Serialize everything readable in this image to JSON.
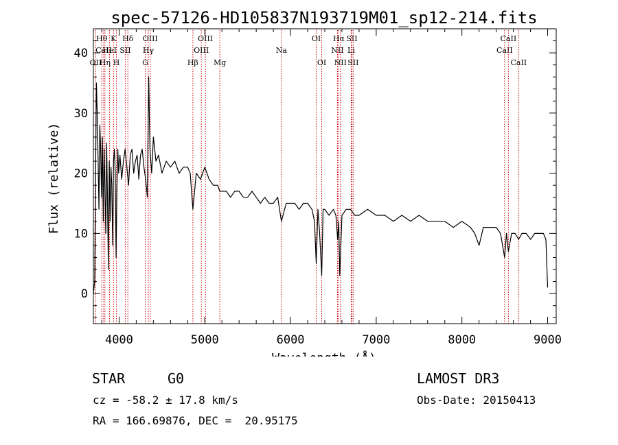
{
  "chart_data": {
    "type": "line",
    "title": "spec-57126-HD105837N193719M01_sp12-214.fits",
    "xlabel": "Wavelength (Å)",
    "ylabel": "Flux (relative)",
    "xlim": [
      3700,
      9100
    ],
    "ylim": [
      -5,
      44
    ],
    "xticks": [
      4000,
      5000,
      6000,
      7000,
      8000,
      9000
    ],
    "yticks": [
      0,
      10,
      20,
      30,
      40
    ],
    "spectral_lines": [
      {
        "name": "OII",
        "wavelength": 3727,
        "row": 3
      },
      {
        "name": "Hθ",
        "wavelength": 3798,
        "row": 1
      },
      {
        "name": "CaII",
        "wavelength": 3820,
        "row": 2
      },
      {
        "name": "HeI",
        "wavelength": 3889,
        "row": 2
      },
      {
        "name": "Hη",
        "wavelength": 3835,
        "row": 3
      },
      {
        "name": "K",
        "wavelength": 3934,
        "row": 1
      },
      {
        "name": "H",
        "wavelength": 3969,
        "row": 3
      },
      {
        "name": "SII",
        "wavelength": 4072,
        "row": 2
      },
      {
        "name": "Hδ",
        "wavelength": 4102,
        "row": 1
      },
      {
        "name": "G",
        "wavelength": 4305,
        "row": 3
      },
      {
        "name": "Hγ",
        "wavelength": 4341,
        "row": 2
      },
      {
        "name": "OIII",
        "wavelength": 4363,
        "row": 1
      },
      {
        "name": "Hβ",
        "wavelength": 4861,
        "row": 3
      },
      {
        "name": "OIII",
        "wavelength": 4959,
        "row": 2
      },
      {
        "name": "OIII",
        "wavelength": 5007,
        "row": 1
      },
      {
        "name": "Mg",
        "wavelength": 5175,
        "row": 3
      },
      {
        "name": "Na",
        "wavelength": 5894,
        "row": 2
      },
      {
        "name": "OI",
        "wavelength": 6300,
        "row": 1
      },
      {
        "name": "OI",
        "wavelength": 6364,
        "row": 3
      },
      {
        "name": "NII",
        "wavelength": 6548,
        "row": 2
      },
      {
        "name": "Hα",
        "wavelength": 6563,
        "row": 1
      },
      {
        "name": "NII",
        "wavelength": 6583,
        "row": 3
      },
      {
        "name": "Li",
        "wavelength": 6708,
        "row": 2
      },
      {
        "name": "SII",
        "wavelength": 6716,
        "row": 1
      },
      {
        "name": "SII",
        "wavelength": 6731,
        "row": 3
      },
      {
        "name": "CaII",
        "wavelength": 8498,
        "row": 2
      },
      {
        "name": "CaII",
        "wavelength": 8542,
        "row": 1
      },
      {
        "name": "CaII",
        "wavelength": 8662,
        "row": 3
      }
    ],
    "series": [
      {
        "name": "flux",
        "x": [
          3700,
          3715,
          3725,
          3735,
          3745,
          3755,
          3765,
          3775,
          3785,
          3795,
          3805,
          3815,
          3825,
          3835,
          3845,
          3855,
          3865,
          3875,
          3885,
          3895,
          3905,
          3915,
          3925,
          3935,
          3945,
          3955,
          3965,
          3975,
          3985,
          3995,
          4010,
          4030,
          4050,
          4070,
          4090,
          4110,
          4130,
          4150,
          4170,
          4190,
          4210,
          4230,
          4250,
          4270,
          4290,
          4310,
          4330,
          4345,
          4360,
          4380,
          4400,
          4430,
          4460,
          4500,
          4550,
          4600,
          4650,
          4700,
          4750,
          4800,
          4830,
          4861,
          4900,
          4950,
          5000,
          5050,
          5100,
          5150,
          5175,
          5200,
          5250,
          5300,
          5350,
          5400,
          5450,
          5500,
          5550,
          5600,
          5650,
          5700,
          5750,
          5800,
          5850,
          5894,
          5950,
          6000,
          6050,
          6100,
          6150,
          6200,
          6250,
          6280,
          6300,
          6320,
          6340,
          6364,
          6380,
          6400,
          6450,
          6500,
          6530,
          6550,
          6563,
          6575,
          6600,
          6650,
          6700,
          6750,
          6800,
          6900,
          7000,
          7100,
          7200,
          7300,
          7400,
          7500,
          7600,
          7700,
          7800,
          7900,
          8000,
          8100,
          8150,
          8200,
          8250,
          8300,
          8400,
          8450,
          8498,
          8520,
          8542,
          8580,
          8620,
          8662,
          8700,
          8750,
          8800,
          8850,
          8900,
          8950,
          8980,
          9000
        ],
        "y": [
          0,
          2,
          19,
          35,
          30,
          22,
          14,
          28,
          24,
          16,
          26,
          12,
          24,
          18,
          10,
          25,
          15,
          4,
          22,
          12,
          21,
          18,
          8,
          22,
          24,
          20,
          6,
          18,
          24,
          20,
          23,
          19,
          22,
          24,
          21,
          18,
          23,
          24,
          20,
          22,
          23,
          19,
          23,
          24,
          21,
          19,
          16,
          36,
          24,
          20,
          26,
          22,
          23,
          20,
          22,
          21,
          22,
          20,
          21,
          21,
          20,
          14,
          20,
          19,
          21,
          19,
          18,
          18,
          17,
          17,
          17,
          16,
          17,
          17,
          16,
          16,
          17,
          16,
          15,
          16,
          15,
          15,
          16,
          12,
          15,
          15,
          15,
          14,
          15,
          15,
          14,
          12,
          5,
          14,
          10,
          3,
          14,
          14,
          13,
          14,
          13,
          9,
          12,
          3,
          13,
          14,
          14,
          13,
          13,
          14,
          13,
          13,
          12,
          13,
          12,
          13,
          12,
          12,
          12,
          11,
          12,
          11,
          10,
          8,
          11,
          11,
          11,
          10,
          6,
          10,
          7,
          10,
          10,
          9,
          10,
          10,
          9,
          10,
          10,
          10,
          9,
          1
        ]
      }
    ]
  },
  "info": {
    "object_class": "STAR",
    "subclass": "G0",
    "survey": "LAMOST DR3",
    "cz": "cz = -58.2 ± 17.8 km/s",
    "obs_date": "Obs-Date: 20150413",
    "coords": "RA = 166.69876, DEC =  20.95175"
  }
}
